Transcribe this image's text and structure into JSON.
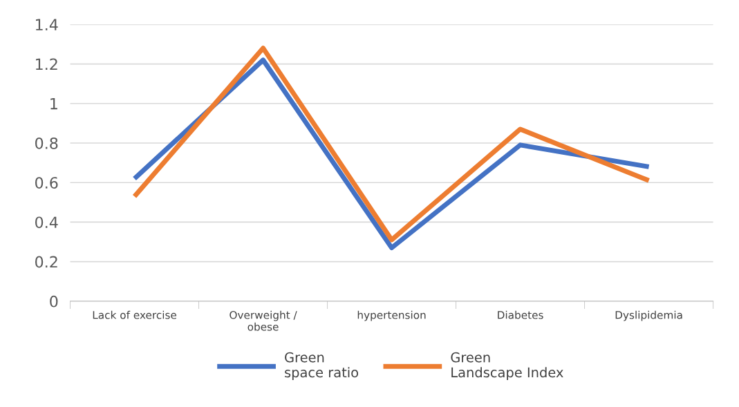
{
  "chart_data": {
    "type": "line",
    "categories": [
      "Lack of exercise",
      "Overweight /\nobese",
      "hypertension",
      "Diabetes",
      "Dyslipidemia"
    ],
    "series": [
      {
        "name": "Green\nspace ratio",
        "color": "#4472c4",
        "values": [
          0.62,
          1.22,
          0.27,
          0.79,
          0.68
        ]
      },
      {
        "name": "Green\nLandscape Index",
        "color": "#ed7d31",
        "values": [
          0.53,
          1.28,
          0.31,
          0.87,
          0.61
        ]
      }
    ],
    "ylim": [
      0,
      1.4
    ],
    "yticks": [
      0,
      0.2,
      0.4,
      0.6,
      0.8,
      1,
      1.2,
      1.4
    ],
    "grid": "y",
    "legend": "bottom",
    "marker": "none",
    "line_style": "solid"
  }
}
